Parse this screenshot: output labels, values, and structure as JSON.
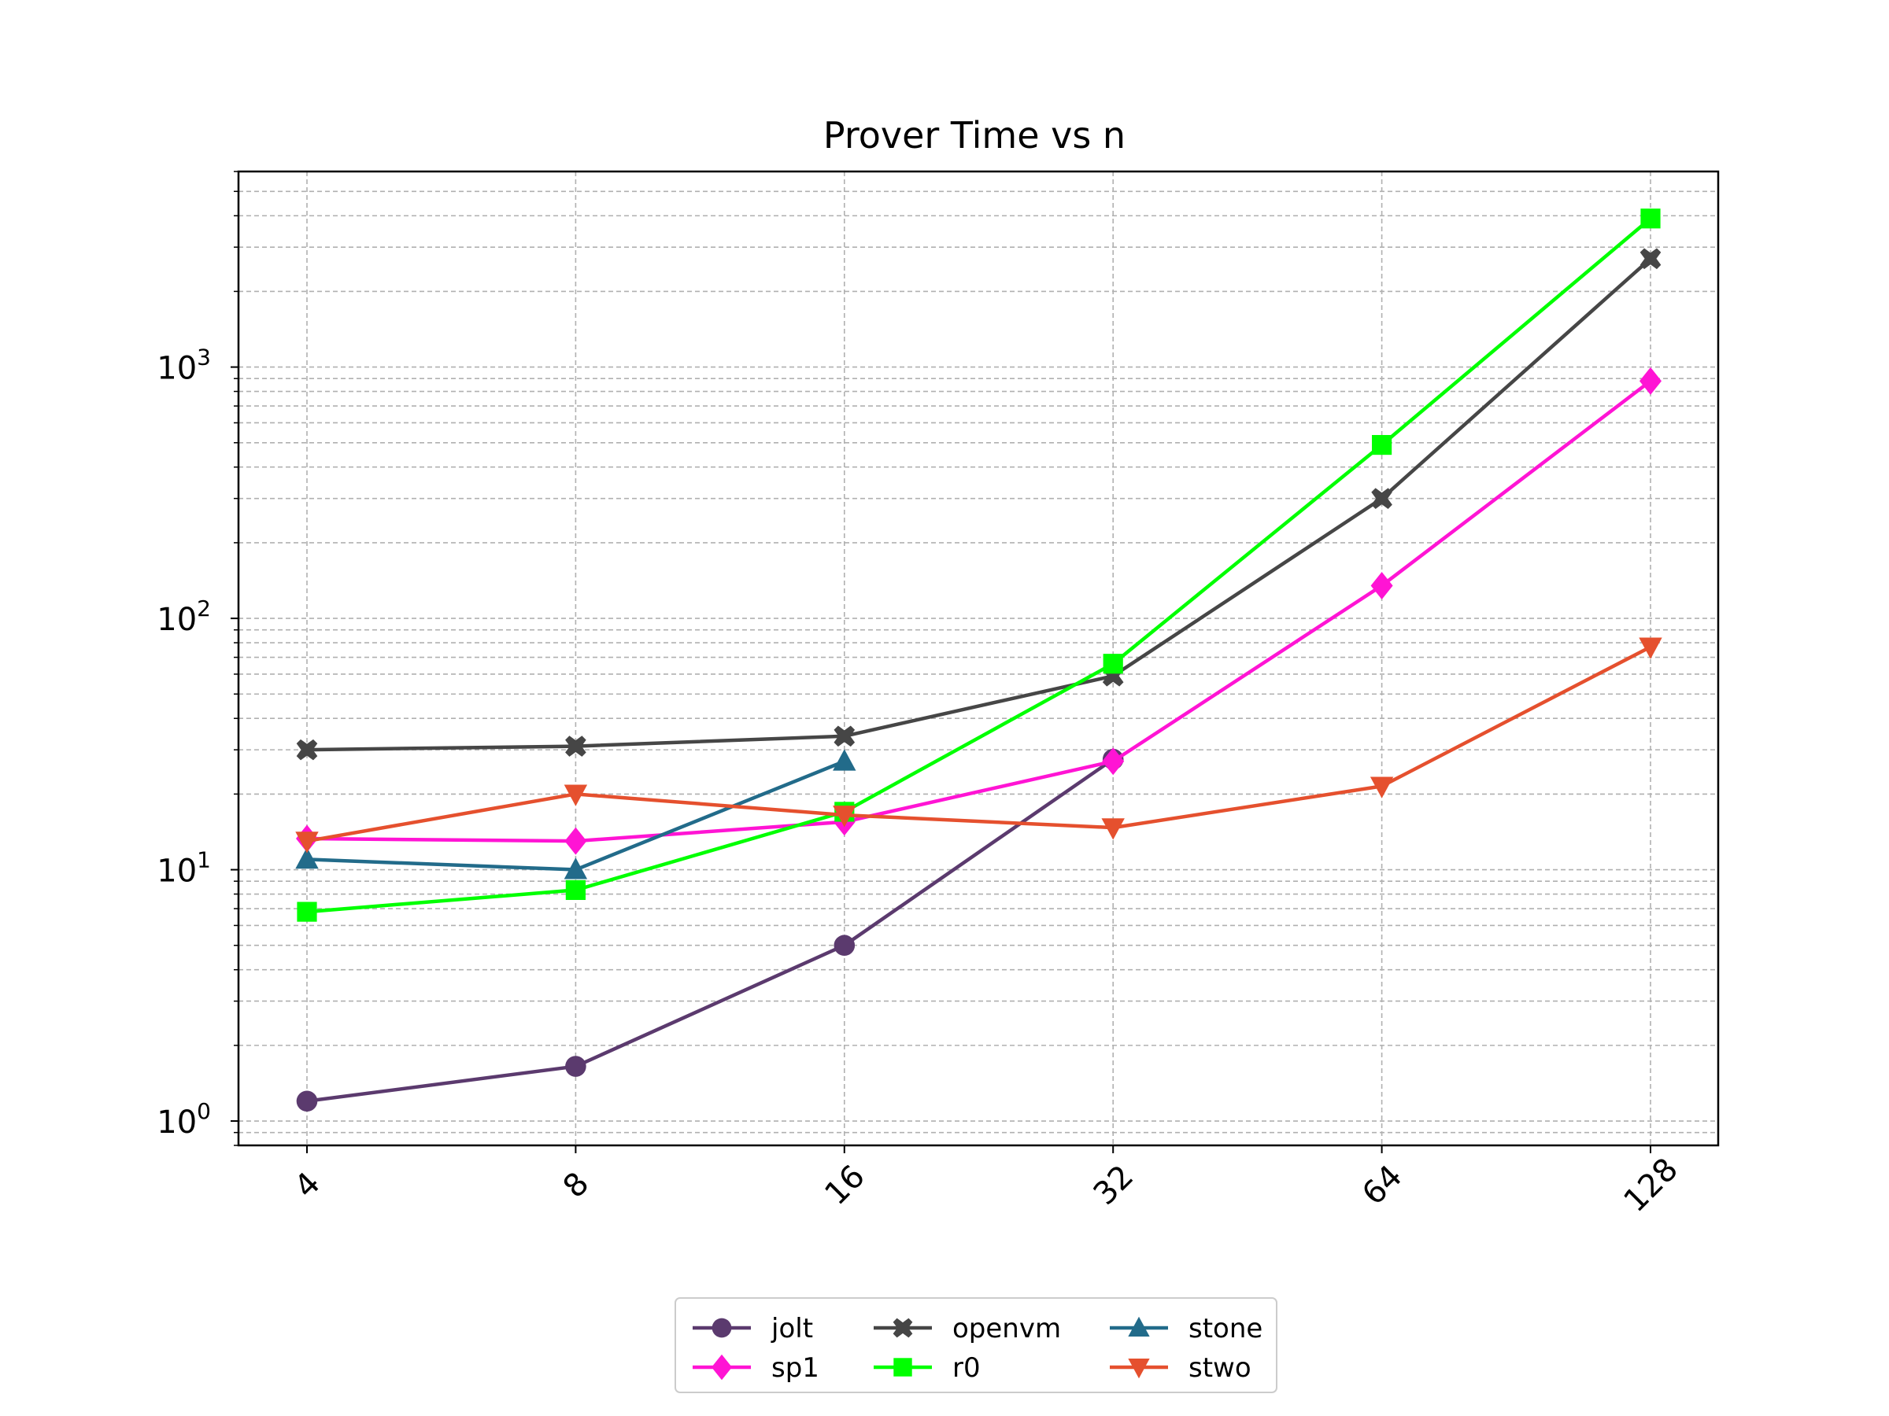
{
  "chart_data": {
    "type": "line",
    "title": "Prover Time vs n",
    "xlabel": "",
    "ylabel": "",
    "x_scale": "log2",
    "y_scale": "log10",
    "x": [
      4,
      8,
      16,
      32,
      64,
      128
    ],
    "x_tick_labels": [
      "4",
      "8",
      "16",
      "32",
      "64",
      "128"
    ],
    "y_ticks": [
      {
        "value": 1,
        "base": "10",
        "exp": "0"
      },
      {
        "value": 10,
        "base": "10",
        "exp": "1"
      },
      {
        "value": 100,
        "base": "10",
        "exp": "2"
      },
      {
        "value": 1000,
        "base": "10",
        "exp": "3"
      }
    ],
    "ylim": [
      0.8,
      6000
    ],
    "grid": "both (major and minor), dashed",
    "legend_placement": "bottom-center, below plot, 3 columns",
    "series": [
      {
        "name": "jolt",
        "color": "#5b3a6e",
        "marker": "circle",
        "x": [
          4,
          8,
          16,
          32
        ],
        "values": [
          1.2,
          1.65,
          5.0,
          27.5
        ]
      },
      {
        "name": "sp1",
        "color": "#ff14d4",
        "marker": "diamond",
        "x": [
          4,
          8,
          16,
          32,
          64,
          128
        ],
        "values": [
          13.3,
          13.0,
          15.5,
          27.0,
          135,
          880
        ]
      },
      {
        "name": "openvm",
        "color": "#464646",
        "marker": "x",
        "x": [
          4,
          8,
          16,
          32,
          64,
          128
        ],
        "values": [
          30,
          31,
          34,
          59,
          300,
          2700
        ]
      },
      {
        "name": "r0",
        "color": "#00ff00",
        "marker": "square",
        "x": [
          4,
          8,
          16,
          32,
          64,
          128
        ],
        "values": [
          6.8,
          8.3,
          17.0,
          66,
          490,
          3900
        ]
      },
      {
        "name": "stone",
        "color": "#226b8a",
        "marker": "triangle-up",
        "x": [
          4,
          8,
          16
        ],
        "values": [
          11.0,
          10.0,
          27.0
        ]
      },
      {
        "name": "stwo",
        "color": "#e5502e",
        "marker": "triangle-down",
        "x": [
          4,
          8,
          16,
          32,
          64,
          128
        ],
        "values": [
          13.0,
          20.0,
          16.5,
          14.7,
          21.5,
          77
        ]
      }
    ]
  }
}
